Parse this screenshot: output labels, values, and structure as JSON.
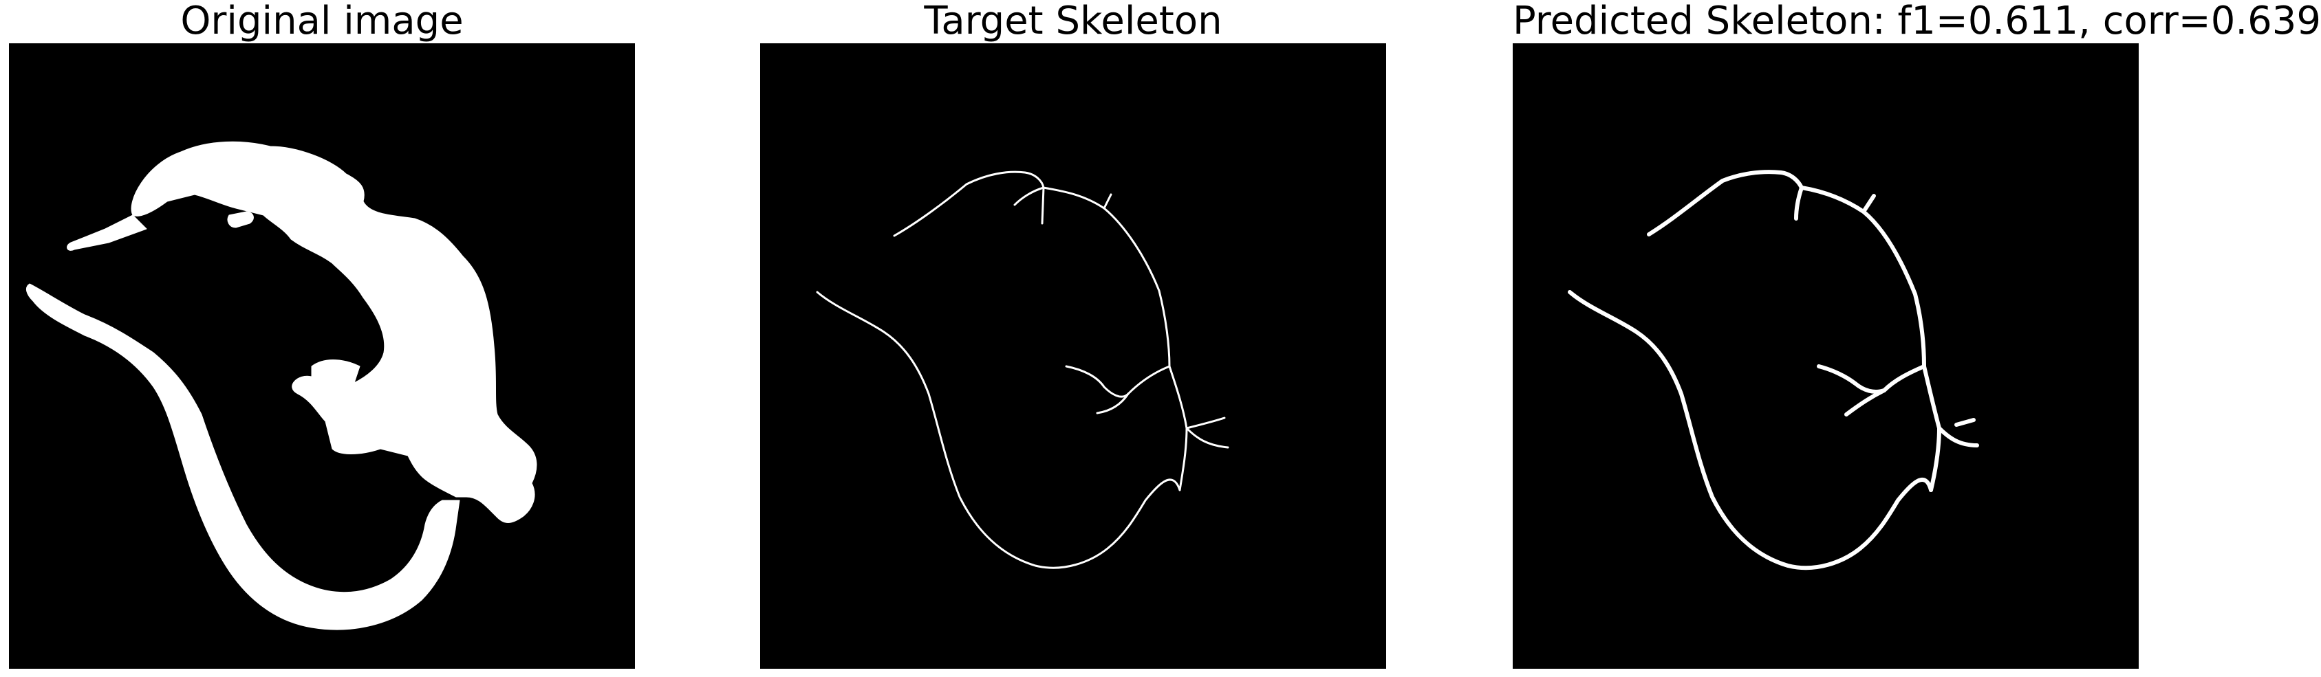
{
  "figure": {
    "panels": [
      {
        "title": "Original image"
      },
      {
        "title": "Target Skeleton"
      },
      {
        "title": "Predicted Skeleton: f1=0.611, corr=0.639"
      }
    ]
  },
  "colors": {
    "background": "#000000",
    "foreground": "#ffffff",
    "page": "#ffffff"
  }
}
